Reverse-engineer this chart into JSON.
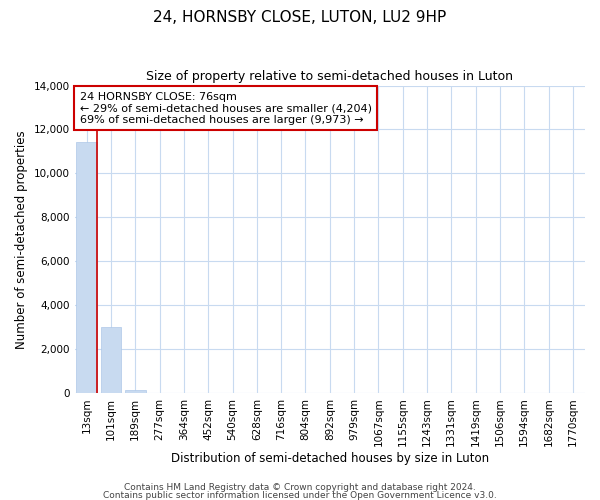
{
  "title": "24, HORNSBY CLOSE, LUTON, LU2 9HP",
  "subtitle": "Size of property relative to semi-detached houses in Luton",
  "xlabel": "Distribution of semi-detached houses by size in Luton",
  "ylabel": "Number of semi-detached properties",
  "bar_labels": [
    "13sqm",
    "101sqm",
    "189sqm",
    "277sqm",
    "364sqm",
    "452sqm",
    "540sqm",
    "628sqm",
    "716sqm",
    "804sqm",
    "892sqm",
    "979sqm",
    "1067sqm",
    "1155sqm",
    "1243sqm",
    "1331sqm",
    "1419sqm",
    "1506sqm",
    "1594sqm",
    "1682sqm",
    "1770sqm"
  ],
  "bar_values": [
    11450,
    3020,
    140,
    0,
    0,
    0,
    0,
    0,
    0,
    0,
    0,
    0,
    0,
    0,
    0,
    0,
    0,
    0,
    0,
    0,
    0
  ],
  "bar_color": "#c8daf0",
  "bar_edge_color": "#aec8e8",
  "highlight_line_color": "#cc0000",
  "annotation_line1": "24 HORNSBY CLOSE: 76sqm",
  "annotation_line2": "← 29% of semi-detached houses are smaller (4,204)",
  "annotation_line3": "69% of semi-detached houses are larger (9,973) →",
  "annotation_box_color": "#ffffff",
  "annotation_box_edge": "#cc0000",
  "ylim": [
    0,
    14000
  ],
  "yticks": [
    0,
    2000,
    4000,
    6000,
    8000,
    10000,
    12000,
    14000
  ],
  "footer1": "Contains HM Land Registry data © Crown copyright and database right 2024.",
  "footer2": "Contains public sector information licensed under the Open Government Licence v3.0.",
  "bg_color": "#ffffff",
  "grid_color": "#c8daf0",
  "title_fontsize": 11,
  "subtitle_fontsize": 9,
  "axis_label_fontsize": 8.5,
  "tick_fontsize": 7.5,
  "annotation_fontsize": 8,
  "footer_fontsize": 6.5
}
